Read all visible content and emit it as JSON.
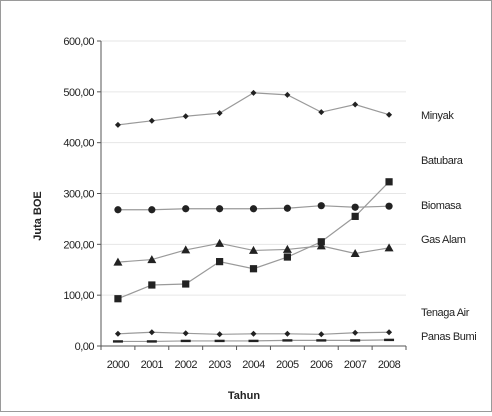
{
  "chart_data": {
    "type": "line",
    "title": "",
    "xlabel": "Tahun",
    "ylabel": "Juta BOE",
    "ylim": [
      0,
      600
    ],
    "yticks": [
      "0,00",
      "100,00",
      "200,00",
      "300,00",
      "400,00",
      "500,00",
      "600,00"
    ],
    "ytick_values": [
      0,
      100,
      200,
      300,
      400,
      500,
      600
    ],
    "categories": [
      "2000",
      "2001",
      "2002",
      "2003",
      "2004",
      "2005",
      "2006",
      "2007",
      "2008"
    ],
    "grid": true,
    "legend_placement": "right (labels beside line ends)",
    "series": [
      {
        "name": "Minyak",
        "marker": "diamond",
        "values": [
          435,
          443,
          452,
          458,
          498,
          494,
          460,
          475,
          455
        ]
      },
      {
        "name": "Batubara",
        "marker": "square",
        "values": [
          93,
          120,
          122,
          166,
          152,
          175,
          205,
          255,
          323
        ]
      },
      {
        "name": "Biomasa",
        "marker": "circle",
        "values": [
          268,
          268,
          270,
          270,
          270,
          271,
          276,
          273,
          275
        ]
      },
      {
        "name": "Gas Alam",
        "marker": "triangle",
        "values": [
          165,
          170,
          189,
          202,
          188,
          190,
          197,
          182,
          193
        ]
      },
      {
        "name": "Tenaga Air",
        "marker": "diamond",
        "values": [
          24,
          27,
          25,
          23,
          24,
          24,
          23,
          26,
          27
        ]
      },
      {
        "name": "Panas Bumi",
        "marker": "dash",
        "values": [
          9,
          9,
          10,
          10,
          10,
          11,
          11,
          11,
          12
        ]
      }
    ]
  },
  "colors": {
    "line": "#9a9a9a",
    "marker": "#222222",
    "grid": "#e6e6e6",
    "axis": "#555555"
  }
}
